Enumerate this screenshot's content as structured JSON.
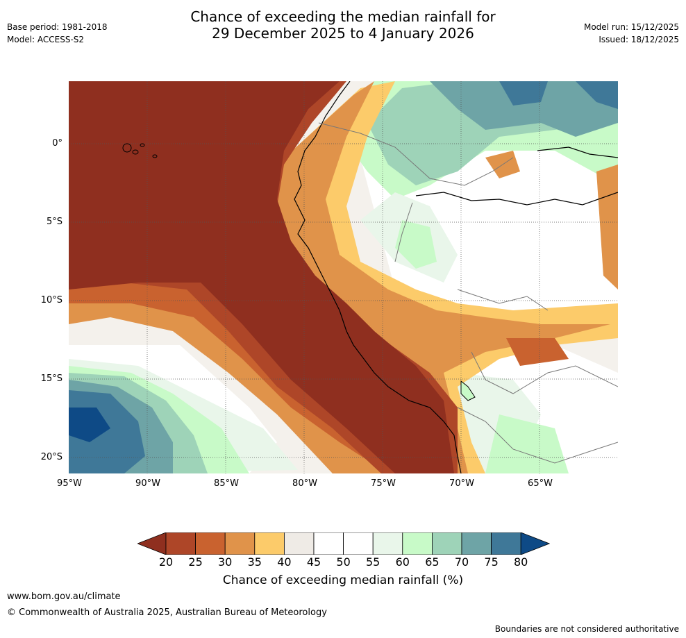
{
  "header": {
    "base_period": "Base period: 1981-2018",
    "model": "Model: ACCESS-S2",
    "title_line1": "Chance of exceeding the median rainfall for",
    "title_line2": "29 December 2025 to 4 January 2026",
    "model_run": "Model run: 15/12/2025",
    "issued": "Issued: 18/12/2025"
  },
  "map": {
    "lat_labels": [
      "0°",
      "5°S",
      "10°S",
      "15°S",
      "20°S"
    ],
    "lon_labels": [
      "95°W",
      "90°W",
      "85°W",
      "80°W",
      "75°W",
      "70°W",
      "65°W"
    ]
  },
  "colorbar": {
    "ticks": [
      "20",
      "25",
      "30",
      "35",
      "40",
      "45",
      "50",
      "55",
      "60",
      "65",
      "70",
      "75",
      "80"
    ],
    "colors": [
      "#8f2f1f",
      "#ae4628",
      "#c9622f",
      "#e0934a",
      "#fccb6a",
      "#efebe6",
      "#ffffff",
      "#ffffff",
      "#e9f6ea",
      "#c8fac8",
      "#9ed3b8",
      "#6ea4a6",
      "#3f7898",
      "#0e4a86"
    ],
    "label": "Chance of exceeding median rainfall (%)"
  },
  "footer": {
    "url": "www.bom.gov.au/climate",
    "copyright": "© Commonwealth of Australia 2025, Australian Bureau of Meteorology",
    "disclaimer": "Boundaries are not considered authoritative"
  }
}
